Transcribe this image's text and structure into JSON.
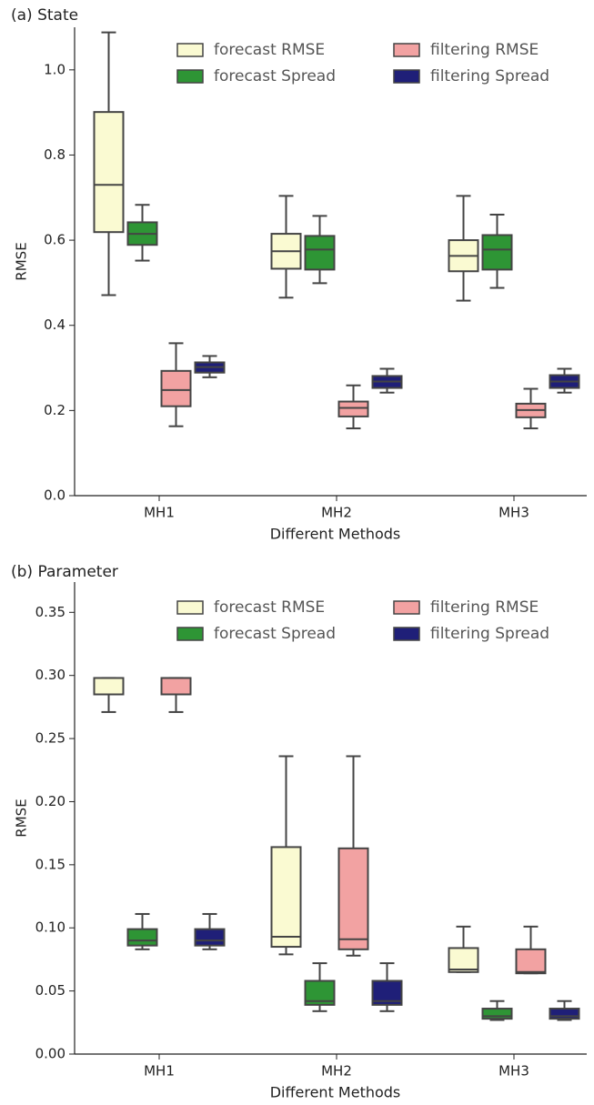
{
  "chart_data": [
    {
      "type": "box",
      "title": "(a) State",
      "x_label": "Different Methods",
      "y_label": "RMSE",
      "categories": [
        "MH1",
        "MH2",
        "MH3"
      ],
      "ylim": [
        0,
        1.1
      ],
      "yticks": [
        {
          "value": 0,
          "label": "0.0"
        },
        0.2,
        0.4,
        0.6,
        0.8,
        {
          "value": 1,
          "label": "1.0"
        }
      ],
      "legend": "upper right",
      "series": [
        {
          "name": "forecast RMSE",
          "color": "#fafad2",
          "whislo": [
            0.471,
            0.465,
            0.458
          ],
          "q1": [
            0.619,
            0.533,
            0.527
          ],
          "med": [
            0.73,
            0.574,
            0.563
          ],
          "q3": [
            0.901,
            0.615,
            0.6
          ],
          "whishi": [
            1.088,
            0.704,
            0.704
          ]
        },
        {
          "name": "forecast Spread",
          "color": "#2e9535",
          "whislo": [
            0.552,
            0.499,
            0.488
          ],
          "q1": [
            0.589,
            0.531,
            0.531
          ],
          "med": [
            0.615,
            0.578,
            0.578
          ],
          "q3": [
            0.642,
            0.61,
            0.612
          ],
          "whishi": [
            0.683,
            0.657,
            0.66
          ]
        },
        {
          "name": "filtering RMSE",
          "color": "#f2a2a2",
          "whislo": [
            0.163,
            0.158,
            0.158
          ],
          "q1": [
            0.21,
            0.186,
            0.184
          ],
          "med": [
            0.248,
            0.206,
            0.201
          ],
          "q3": [
            0.293,
            0.221,
            0.216
          ],
          "whishi": [
            0.358,
            0.259,
            0.251
          ]
        },
        {
          "name": "filtering Spread",
          "color": "#1f1f78",
          "whislo": [
            0.278,
            0.242,
            0.242
          ],
          "q1": [
            0.289,
            0.253,
            0.253
          ],
          "med": [
            0.302,
            0.268,
            0.268
          ],
          "q3": [
            0.313,
            0.281,
            0.283
          ],
          "whishi": [
            0.328,
            0.298,
            0.298
          ]
        }
      ]
    },
    {
      "type": "box",
      "title": "(b) Parameter",
      "x_label": "Different Methods",
      "y_label": "RMSE",
      "categories": [
        "MH1",
        "MH2",
        "MH3"
      ],
      "ylim": [
        0,
        0.374
      ],
      "yticks": [
        {
          "value": 0,
          "label": "0.00"
        },
        0.05,
        {
          "value": 0.1,
          "label": "0.10"
        },
        0.15,
        {
          "value": 0.2,
          "label": "0.20"
        },
        0.25,
        {
          "value": 0.3,
          "label": "0.30"
        },
        0.35
      ],
      "legend": "upper right",
      "series": [
        {
          "name": "forecast RMSE",
          "color": "#fafad2",
          "whislo": [
            0.271,
            0.079,
            0.065
          ],
          "q1": [
            0.285,
            0.085,
            0.065
          ],
          "med": [
            0.298,
            0.093,
            0.067
          ],
          "q3": [
            0.298,
            0.164,
            0.084
          ],
          "whishi": [
            0.298,
            0.236,
            0.101
          ]
        },
        {
          "name": "forecast Spread",
          "color": "#2e9535",
          "whislo": [
            0.083,
            0.034,
            0.027
          ],
          "q1": [
            0.086,
            0.039,
            0.028
          ],
          "med": [
            0.09,
            0.042,
            0.03
          ],
          "q3": [
            0.099,
            0.058,
            0.036
          ],
          "whishi": [
            0.111,
            0.072,
            0.042
          ]
        },
        {
          "name": "filtering RMSE",
          "color": "#f2a2a2",
          "whislo": [
            0.271,
            0.078,
            0.064
          ],
          "q1": [
            0.285,
            0.083,
            0.064
          ],
          "med": [
            0.298,
            0.091,
            0.065
          ],
          "q3": [
            0.298,
            0.163,
            0.083
          ],
          "whishi": [
            0.298,
            0.236,
            0.101
          ]
        },
        {
          "name": "filtering Spread",
          "color": "#1f1f78",
          "whislo": [
            0.083,
            0.034,
            0.027
          ],
          "q1": [
            0.086,
            0.039,
            0.028
          ],
          "med": [
            0.09,
            0.042,
            0.03
          ],
          "q3": [
            0.099,
            0.058,
            0.036
          ],
          "whishi": [
            0.111,
            0.072,
            0.042
          ]
        }
      ]
    }
  ]
}
